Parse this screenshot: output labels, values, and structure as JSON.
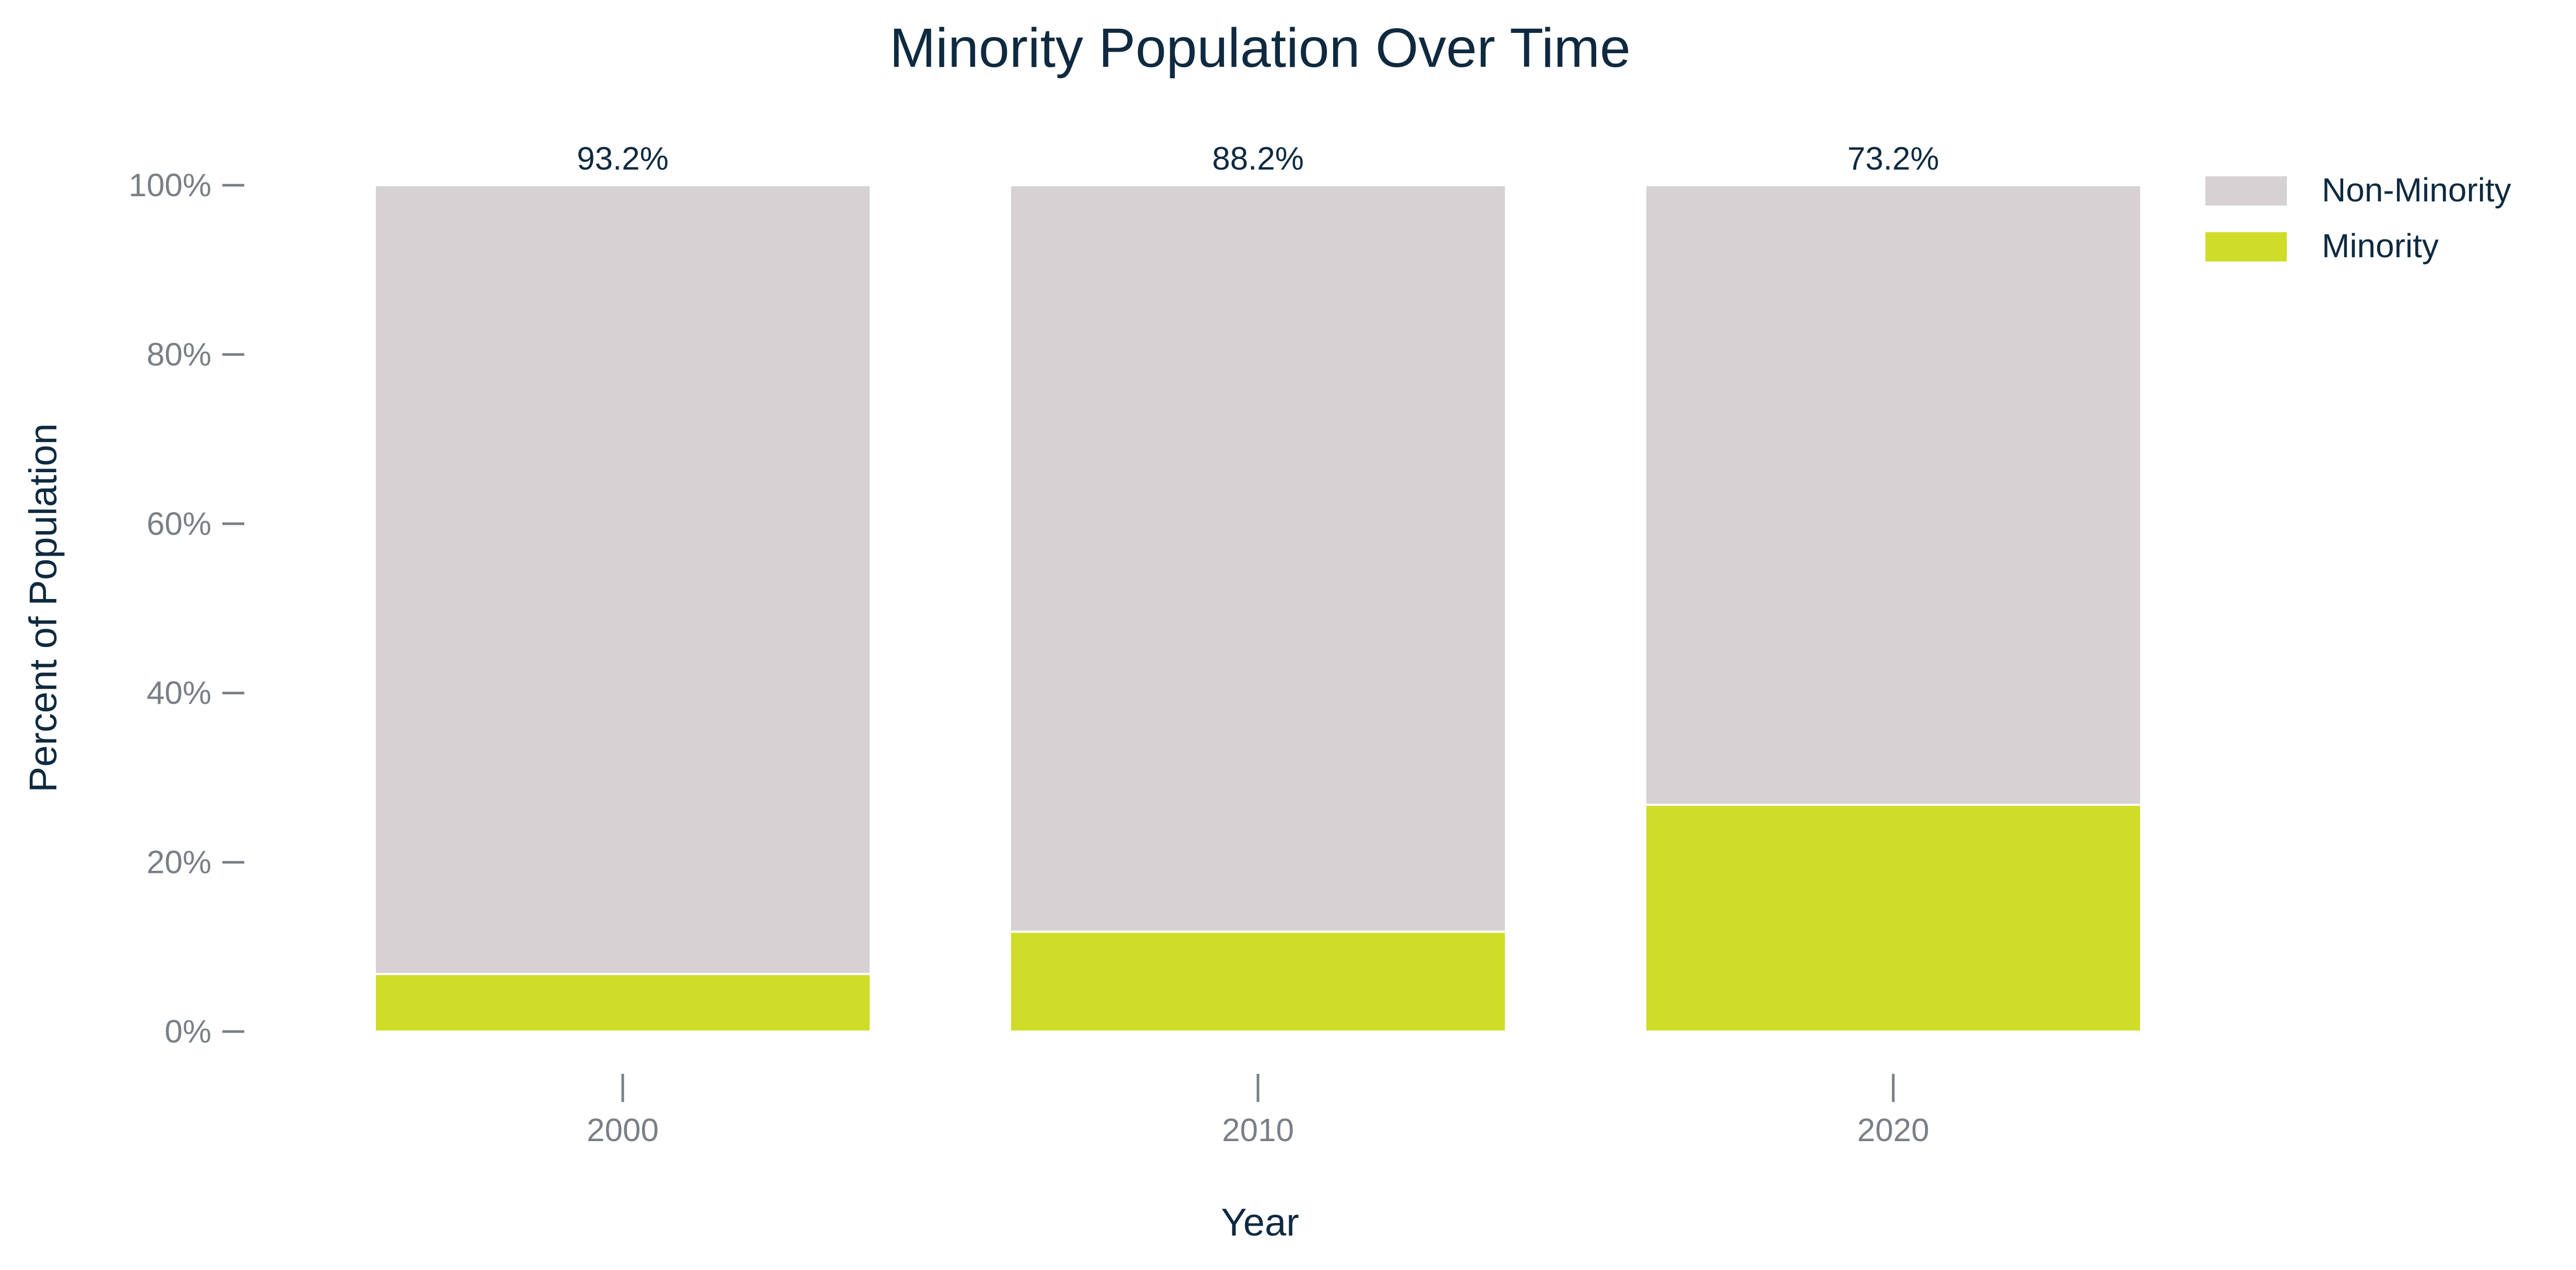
{
  "chart_data": {
    "type": "bar",
    "stacked": true,
    "title": "Minority Population Over Time",
    "xlabel": "Year",
    "ylabel": "Percent of Population",
    "categories": [
      "2000",
      "2010",
      "2020"
    ],
    "ylim": [
      0,
      100
    ],
    "yticks": [
      0,
      20,
      40,
      60,
      80,
      100
    ],
    "ytick_labels": [
      "0%",
      "20%",
      "40%",
      "60%",
      "80%",
      "100%"
    ],
    "series": [
      {
        "name": "Minority",
        "values": [
          6.8,
          11.8,
          26.8
        ],
        "labels": [
          "6.8%",
          "11.8%",
          "26.8%"
        ],
        "color": "#cfdd28"
      },
      {
        "name": "Non-Minority",
        "values": [
          93.2,
          88.2,
          73.2
        ],
        "labels": [
          "93.2%",
          "88.2%",
          "73.2%"
        ],
        "color": "#d6d1d3"
      }
    ],
    "legend": {
      "position": "top-right",
      "order": [
        "Non-Minority",
        "Minority"
      ]
    },
    "grid": false
  }
}
